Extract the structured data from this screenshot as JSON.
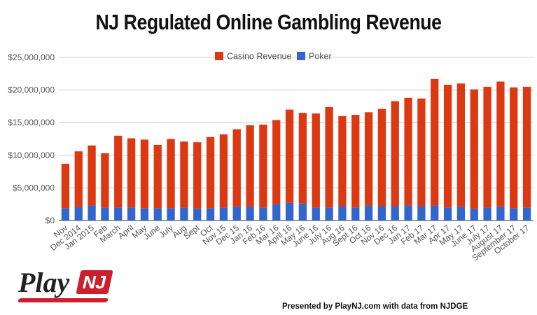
{
  "chart_data": {
    "type": "bar",
    "stacked": true,
    "title": "NJ Regulated Online Gambling Revenue",
    "categories": [
      "Nov",
      "Dec 2014",
      "Jan 2015",
      "Feb",
      "March",
      "April",
      "May",
      "June",
      "July",
      "Aug",
      "Sept",
      "Oct",
      "Nov 15",
      "Dec 15",
      "Jan 16",
      "Feb 16",
      "Mar 16",
      "April 16",
      "May 16",
      "June 16",
      "July 16",
      "Aug 16",
      "Sept 16",
      "Oct 16",
      "Nov 16",
      "Dec 16",
      "Jan 17",
      "Feb 17",
      "Mar 17",
      "Apr 17",
      "May 17",
      "June 17",
      "July 17",
      "August 17",
      "September 17",
      "October 17"
    ],
    "series": [
      {
        "name": "Poker",
        "color": "#3366cc",
        "values": [
          1900000,
          2100000,
          2300000,
          2000000,
          2000000,
          2000000,
          1900000,
          1900000,
          1900000,
          2000000,
          1800000,
          1900000,
          2000000,
          2100000,
          2100000,
          2000000,
          2500000,
          2700000,
          2600000,
          2000000,
          2000000,
          2200000,
          2000000,
          2300000,
          2200000,
          2200000,
          2300000,
          2200000,
          2300000,
          2000000,
          2100000,
          1800000,
          2000000,
          2100000,
          1900000,
          2000000
        ]
      },
      {
        "name": "Casino Revenue",
        "color": "#dc3912",
        "values": [
          6800000,
          8500000,
          9200000,
          8300000,
          11000000,
          10600000,
          10500000,
          9700000,
          10600000,
          10100000,
          10200000,
          10900000,
          11200000,
          11900000,
          12500000,
          12700000,
          12900000,
          14300000,
          13900000,
          14400000,
          15400000,
          13800000,
          14200000,
          14300000,
          14900000,
          16100000,
          16500000,
          16500000,
          19400000,
          18800000,
          18900000,
          18300000,
          18500000,
          19200000,
          18500000,
          18500000
        ]
      }
    ],
    "ylim": [
      0,
      25000000
    ],
    "yticks": [
      "$0",
      "$5,000,000",
      "$10,000,000",
      "$15,000,000",
      "$20,000,000",
      "$25,000,000"
    ],
    "legend": [
      "Casino Revenue",
      "Poker"
    ],
    "legend_position": "top",
    "grid": true
  },
  "footer": {
    "logo_play": "Play",
    "logo_nj": "NJ",
    "credit": "Presented by PlayNJ.com with data from NJDGE"
  }
}
